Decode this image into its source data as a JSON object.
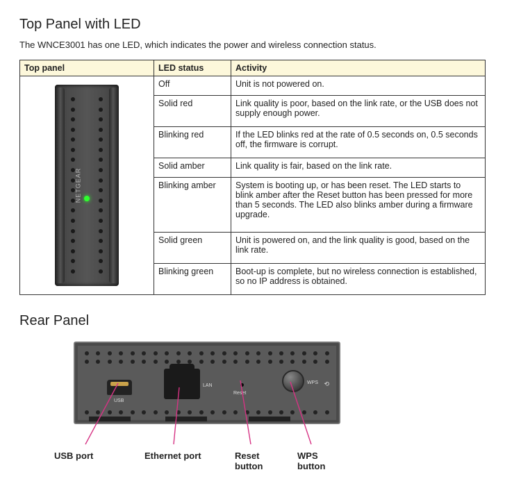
{
  "section1": {
    "title": "Top Panel with LED",
    "intro": "The WNCE3001 has one LED, which indicates the power and wireless connection status."
  },
  "table": {
    "headers": [
      "Top panel",
      "LED status",
      "Activity"
    ],
    "rows": [
      {
        "status": "Off",
        "activity": "Unit is not powered on."
      },
      {
        "status": "Solid red",
        "activity": "Link quality is poor, based on the link rate, or the USB does not supply enough power."
      },
      {
        "status": "Blinking red",
        "activity": "If the LED blinks red at the rate of 0.5 seconds on, 0.5 seconds off, the firmware is corrupt."
      },
      {
        "status": "Solid amber",
        "activity": "Link quality is fair, based on the link rate."
      },
      {
        "status": "Blinking amber",
        "activity": "System is booting up, or has been reset. The LED starts to blink amber after the Reset button has been pressed for more than 5 seconds. The LED also blinks amber during a firmware upgrade."
      },
      {
        "status": "Solid green",
        "activity": "Unit is powered on, and the link quality is good, based on the link rate."
      },
      {
        "status": "Blinking green",
        "activity": "Boot-up is complete, but no wireless connection is established, so no IP address is obtained."
      }
    ],
    "col_widths": [
      "180px",
      "98px",
      "auto"
    ]
  },
  "device": {
    "brand": "NETGEAR",
    "led_color": "#2eff2e"
  },
  "section2": {
    "title": "Rear Panel"
  },
  "rear": {
    "labels": {
      "usb_tiny": "USB",
      "lan_tiny": "LAN",
      "reset_tiny": "Reset",
      "wps_tiny": "WPS"
    },
    "callouts": {
      "usb": "USB port",
      "eth": "Ethernet port",
      "reset": "Reset\nbutton",
      "wps": "WPS\nbutton"
    }
  },
  "colors": {
    "header_bg": "#fdf8db",
    "border": "#333333",
    "callout_line": "#d63384",
    "device_body": "#4a4a4a",
    "led": "#2eff2e"
  }
}
